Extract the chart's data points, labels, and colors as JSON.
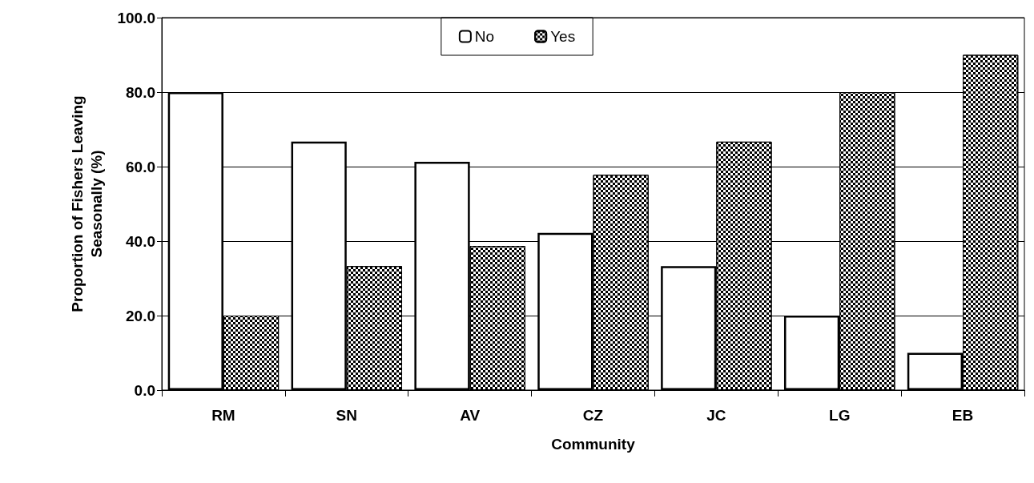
{
  "chart_data": {
    "type": "bar",
    "xlabel": "Community",
    "ylabel": "Proportion of Fishers Leaving\nSeasonally (%)",
    "categories": [
      "RM",
      "SN",
      "AV",
      "CZ",
      "JC",
      "LG",
      "EB"
    ],
    "series": [
      {
        "name": "No",
        "color": "#ffffff",
        "values": [
          80.0,
          66.7,
          61.3,
          42.2,
          33.3,
          20.0,
          10.0
        ]
      },
      {
        "name": "Yes",
        "color": "#000000",
        "values": [
          20.0,
          33.3,
          38.7,
          57.8,
          66.7,
          80.0,
          90.0
        ]
      }
    ],
    "ylim": [
      0,
      100
    ],
    "yticks": [
      {
        "value": 0,
        "label": "0.0"
      },
      {
        "value": 20,
        "label": "20.0"
      },
      {
        "value": 40,
        "label": "40.0"
      },
      {
        "value": 60,
        "label": "60.0"
      },
      {
        "value": 80,
        "label": "80.0"
      },
      {
        "value": 100,
        "label": "100.0"
      }
    ],
    "grid": "y",
    "legend": "top"
  }
}
